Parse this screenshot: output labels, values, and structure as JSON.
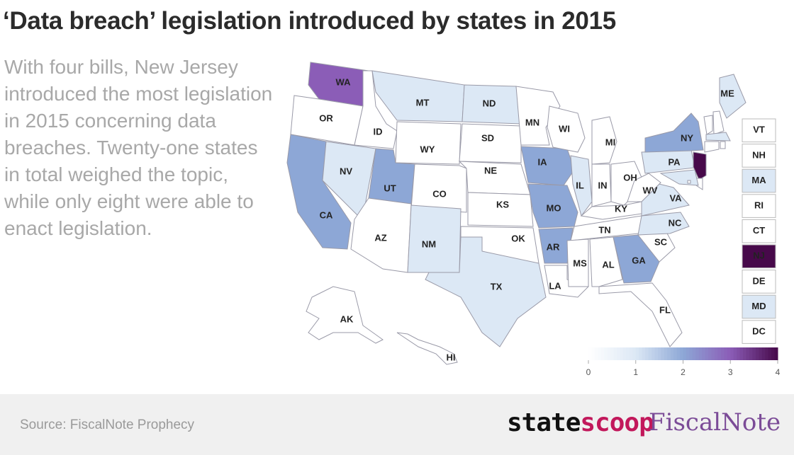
{
  "header": {
    "title": "‘Data breach’ legislation introduced by states in 2015",
    "description": "With four bills, New Jersey introduced the most legislation in 2015 concerning data breaches. Twenty-one states in total weighed the topic, while only eight were able to enact legislation."
  },
  "map": {
    "type": "choropleth",
    "states": [
      {
        "label": "WA",
        "value": 3
      },
      {
        "label": "OR",
        "value": 0
      },
      {
        "label": "CA",
        "value": 2
      },
      {
        "label": "NV",
        "value": 1
      },
      {
        "label": "ID",
        "value": 0
      },
      {
        "label": "MT",
        "value": 1
      },
      {
        "label": "WY",
        "value": 0
      },
      {
        "label": "UT",
        "value": 2
      },
      {
        "label": "CO",
        "value": 0
      },
      {
        "label": "AZ",
        "value": 0
      },
      {
        "label": "NM",
        "value": 1
      },
      {
        "label": "ND",
        "value": 1
      },
      {
        "label": "SD",
        "value": 0
      },
      {
        "label": "NE",
        "value": 0
      },
      {
        "label": "KS",
        "value": 0
      },
      {
        "label": "OK",
        "value": 0
      },
      {
        "label": "TX",
        "value": 1
      },
      {
        "label": "MN",
        "value": 0
      },
      {
        "label": "IA",
        "value": 2
      },
      {
        "label": "MO",
        "value": 2
      },
      {
        "label": "AR",
        "value": 2
      },
      {
        "label": "LA",
        "value": 0
      },
      {
        "label": "WI",
        "value": 0
      },
      {
        "label": "IL",
        "value": 1
      },
      {
        "label": "MI",
        "value": 0
      },
      {
        "label": "IN",
        "value": 0
      },
      {
        "label": "OH",
        "value": 0
      },
      {
        "label": "KY",
        "value": 0
      },
      {
        "label": "TN",
        "value": 0
      },
      {
        "label": "MS",
        "value": 0
      },
      {
        "label": "AL",
        "value": 0
      },
      {
        "label": "GA",
        "value": 2
      },
      {
        "label": "FL",
        "value": 0
      },
      {
        "label": "SC",
        "value": 0
      },
      {
        "label": "NC",
        "value": 1
      },
      {
        "label": "VA",
        "value": 1
      },
      {
        "label": "WV",
        "value": 0
      },
      {
        "label": "PA",
        "value": 1
      },
      {
        "label": "NY",
        "value": 2
      },
      {
        "label": "ME",
        "value": 1
      },
      {
        "label": "AK",
        "value": 0
      },
      {
        "label": "HI",
        "value": 0
      }
    ],
    "boxes": [
      {
        "label": "VT",
        "value": 0
      },
      {
        "label": "NH",
        "value": 0
      },
      {
        "label": "MA",
        "value": 1
      },
      {
        "label": "RI",
        "value": 0
      },
      {
        "label": "CT",
        "value": 0
      },
      {
        "label": "NJ",
        "value": 4
      },
      {
        "label": "DE",
        "value": 0
      },
      {
        "label": "MD",
        "value": 1
      },
      {
        "label": "DC",
        "value": 0
      }
    ],
    "domain": [
      0,
      4
    ],
    "colors": [
      "#ffffff",
      "#dce8f5",
      "#8da7d6",
      "#8b5db7",
      "#47094a"
    ],
    "legend_ticks": [
      0,
      1,
      2,
      3,
      4
    ]
  },
  "footer": {
    "source": "Source: FiscalNote Prophecy",
    "logo_state": "state",
    "logo_scoop": "scoop",
    "logo_fiscalnote": "FiscalNote"
  }
}
